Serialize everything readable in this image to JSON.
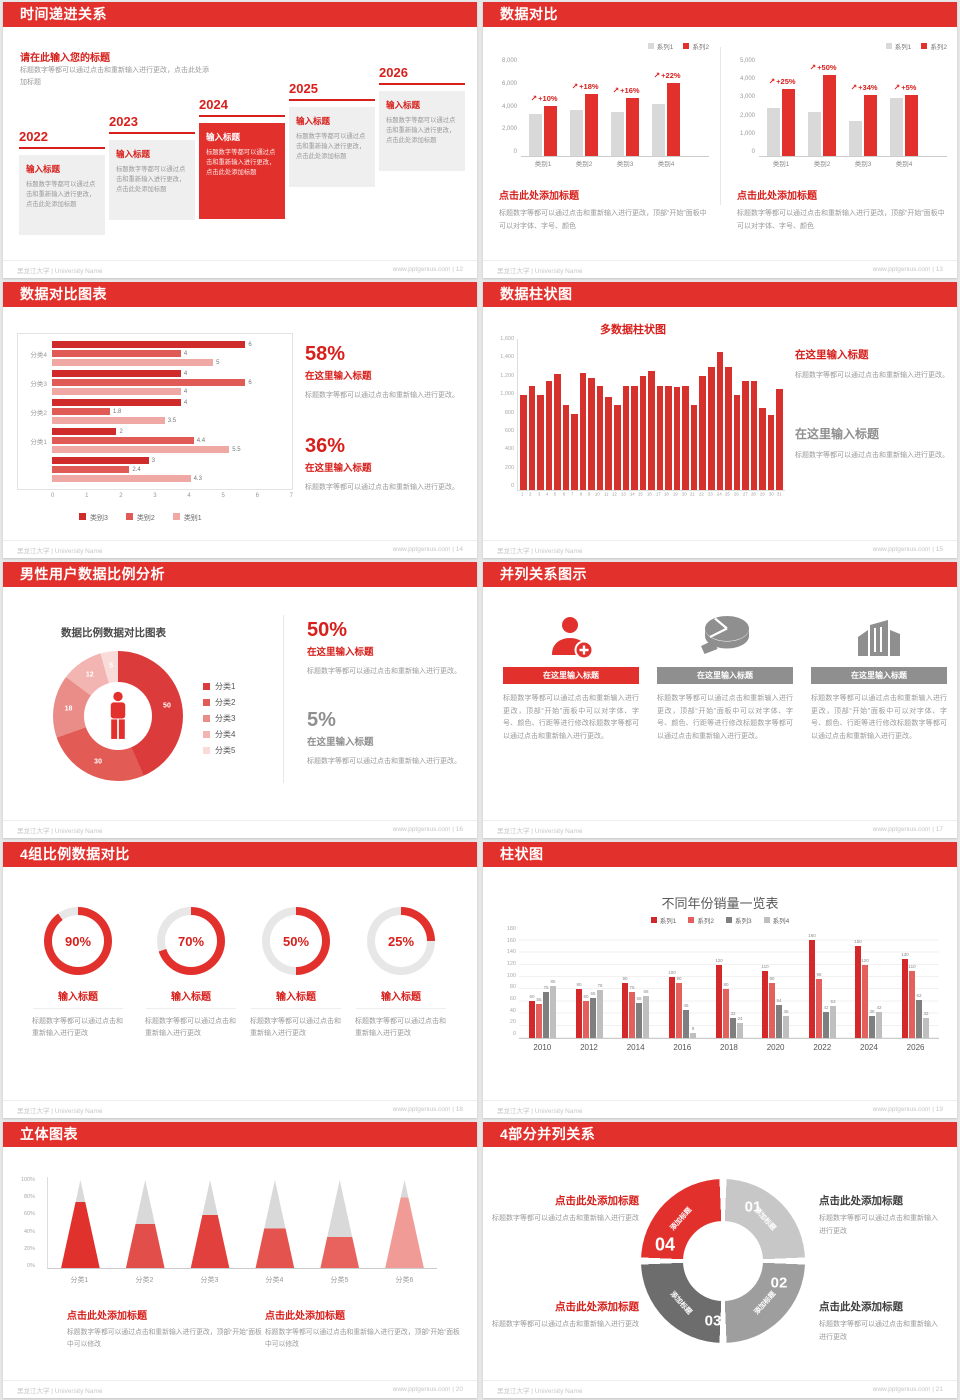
{
  "page": {
    "background": "#e7e7e7",
    "accent": "#e2312d",
    "footer_left": "黑龙江大学 | University Name",
    "footer_site": "www.pptgenius.com"
  },
  "slides": {
    "s1": {
      "title": "时间递进关系",
      "page_no": "12",
      "heading": "请在此输入您的标题",
      "intro": "标题数字等都可以通过点击和重新输入进行更改，点击此处添加标题",
      "item_title": "输入标题",
      "item_body": "标题数字等都可以通过点击和重新输入进行更改，点击此处添加标题",
      "years": [
        "2022",
        "2023",
        "2024",
        "2025",
        "2026"
      ]
    },
    "s2": {
      "title": "数据对比",
      "page_no": "13",
      "heading": "点击此处添加标题",
      "body": "标题数字等都可以通过点击和重新输入进行更改，顶部“开始”面板中可以对字体、字号、颜色"
    },
    "s3": {
      "title": "数据对比图表",
      "page_no": "14",
      "stats": [
        {
          "value": "58%",
          "heading": "在这里输入标题",
          "body": "标题数字等都可以通过点击和重新输入进行更改。"
        },
        {
          "value": "36%",
          "heading": "在这里输入标题",
          "body": "标题数字等都可以通过点击和重新输入进行更改。"
        }
      ]
    },
    "s4": {
      "title": "数据柱状图",
      "page_no": "15",
      "stats": [
        {
          "heading": "在这里输入标题",
          "body": "标题数字等都可以通过点击和重新输入进行更改。"
        },
        {
          "heading": "在这里输入标题",
          "body": "标题数字等都可以通过点击和重新输入进行更改。"
        }
      ]
    },
    "s5": {
      "title": "男性用户数据比例分析",
      "page_no": "16",
      "chart_title": "数据比例数据对比图表",
      "stats": [
        {
          "value": "50%",
          "heading": "在这里输入标题",
          "body": "标题数字等都可以通过点击和重新输入进行更改。"
        },
        {
          "value": "5%",
          "heading": "在这里输入标题",
          "body": "标题数字等都可以通过点击和重新输入进行更改。"
        }
      ]
    },
    "s6": {
      "title": "并列关系图示",
      "page_no": "17",
      "columns": [
        {
          "icon": "nurse-plus-icon",
          "banner": "在这里输入标题",
          "accent": "#e2312d",
          "body": "标题数字等都可以通过点击和重新输入进行更改，顶部“开始”面板中可以对字体、字号、颜色、行距等进行修改标题数字等都可以通过点击和重新输入进行更改。"
        },
        {
          "icon": "pie-3d-icon",
          "banner": "在这里输入标题",
          "accent": "#8f8f8f",
          "body": "标题数字等都可以通过点击和重新输入进行更改，顶部“开始”面板中可以对字体、字号、颜色、行距等进行修改标题数字等都可以通过点击和重新输入进行更改。"
        },
        {
          "icon": "building-icon",
          "banner": "在这里输入标题",
          "accent": "#8f8f8f",
          "body": "标题数字等都可以通过点击和重新输入进行更改，顶部“开始”面板中可以对字体、字号、颜色、行距等进行修改标题数字等都可以通过点击和重新输入进行更改。"
        }
      ]
    },
    "s7": {
      "title": "4组比例数据对比",
      "page_no": "18",
      "items": [
        {
          "percent": 90,
          "label": "90%",
          "heading": "输入标题",
          "body": "标题数字等都可以通过点击和重新输入进行更改"
        },
        {
          "percent": 70,
          "label": "70%",
          "heading": "输入标题",
          "body": "标题数字等都可以通过点击和重新输入进行更改"
        },
        {
          "percent": 50,
          "label": "50%",
          "heading": "输入标题",
          "body": "标题数字等都可以通过点击和重新输入进行更改"
        },
        {
          "percent": 25,
          "label": "25%",
          "heading": "输入标题",
          "body": "标题数字等都可以通过点击和重新输入进行更改"
        }
      ]
    },
    "s8": {
      "title": "柱状图",
      "page_no": "19"
    },
    "s9": {
      "title": "立体图表",
      "page_no": "20",
      "blocks": [
        {
          "heading": "点击此处添加标题",
          "body": "标题数字等都可以通过点击和重新输入进行更改，顶部“开始”面板中可以修改"
        },
        {
          "heading": "点击此处添加标题",
          "body": "标题数字等都可以通过点击和重新输入进行更改，顶部“开始”面板中可以修改"
        }
      ]
    },
    "s10": {
      "title": "4部分并列关系",
      "page_no": "21",
      "segments": [
        {
          "num": "01",
          "label": "添加标题",
          "color": "#c7c7c7"
        },
        {
          "num": "02",
          "label": "添加标题",
          "color": "#9e9e9e"
        },
        {
          "num": "03",
          "label": "添加标题",
          "color": "#6d6d6d"
        },
        {
          "num": "04",
          "label": "添加标题",
          "color": "#e2312d"
        }
      ],
      "blocks": [
        {
          "heading": "点击此处添加标题",
          "body": "标题数字等都可以通过点击和重新输入进行更改"
        },
        {
          "heading": "点击此处添加标题",
          "body": "标题数字等都可以通过点击和重新输入进行更改"
        },
        {
          "heading": "点击此处添加标题",
          "body": "标题数字等都可以通过点击和重新输入进行更改"
        },
        {
          "heading": "点击此处添加标题",
          "body": "标题数字等都可以通过点击和重新输入进行更改"
        }
      ]
    }
  },
  "chart_data": [
    {
      "id": "compare-left",
      "type": "bar",
      "categories": [
        "类别1",
        "类别2",
        "类别3",
        "类别4"
      ],
      "series": [
        {
          "name": "系列1",
          "color": "#d9d9d9",
          "values": [
            3500,
            3800,
            3700,
            4300
          ]
        },
        {
          "name": "系列2",
          "color": "#e2312d",
          "values": [
            4200,
            5200,
            4800,
            6100
          ]
        }
      ],
      "growth_labels": [
        "+10%",
        "+18%",
        "+16%",
        "+22%"
      ],
      "ylim": [
        0,
        8000
      ],
      "yticks": [
        "8,000",
        "6,000",
        "4,000",
        "2,000",
        "0"
      ]
    },
    {
      "id": "compare-right",
      "type": "bar",
      "categories": [
        "类别1",
        "类别2",
        "类别3",
        "类别4"
      ],
      "series": [
        {
          "name": "系列1",
          "color": "#d9d9d9",
          "values": [
            2500,
            2300,
            1800,
            3000
          ]
        },
        {
          "name": "系列2",
          "color": "#e2312d",
          "values": [
            3500,
            4200,
            3200,
            3200
          ]
        }
      ],
      "growth_labels": [
        "+25%",
        "+50%",
        "+34%",
        "+5%"
      ],
      "ylim": [
        0,
        5000
      ],
      "yticks": [
        "5,000",
        "4,000",
        "3,000",
        "2,000",
        "1,000",
        "0"
      ]
    },
    {
      "id": "horizontal-compare",
      "type": "bar",
      "orientation": "horizontal",
      "legend": [
        "类别3",
        "类别2",
        "类别1"
      ],
      "colors": [
        "#cf2b2b",
        "#e05a56",
        "#f0a8a5"
      ],
      "groups": [
        {
          "label": "分类4",
          "values": [
            6,
            4,
            5
          ]
        },
        {
          "label": "分类3",
          "values": [
            4,
            6,
            4
          ]
        },
        {
          "label": "分类2",
          "values": [
            4,
            1.8,
            3.5
          ]
        },
        {
          "label": "分类1",
          "values": [
            2,
            4.4,
            5.5
          ]
        },
        {
          "label": "",
          "values": [
            3,
            2.4,
            4.3
          ]
        }
      ],
      "xlim": [
        0,
        7
      ],
      "xticks": [
        "0",
        "1",
        "2",
        "3",
        "4",
        "5",
        "6",
        "7"
      ]
    },
    {
      "id": "multi-column",
      "type": "bar",
      "title": "多数据柱状图",
      "color": "#d7312e",
      "x": [
        1,
        2,
        3,
        4,
        5,
        6,
        7,
        8,
        9,
        10,
        11,
        12,
        13,
        14,
        15,
        16,
        17,
        18,
        19,
        20,
        21,
        22,
        23,
        24,
        25,
        26,
        27,
        28,
        29,
        30,
        31
      ],
      "values": [
        1000,
        1100,
        1000,
        1150,
        1220,
        900,
        800,
        1230,
        1180,
        1100,
        980,
        900,
        1090,
        1090,
        1200,
        1250,
        1100,
        1090,
        1080,
        1100,
        900,
        1200,
        1300,
        1450,
        1300,
        1000,
        1150,
        1150,
        860,
        790,
        1060
      ],
      "ylim": [
        0,
        1600
      ],
      "yticks": [
        "1,600",
        "1,400",
        "1,200",
        "1,000",
        "800",
        "600",
        "400",
        "200",
        "0"
      ]
    },
    {
      "id": "gender-donut",
      "type": "pie",
      "title": "数据比例数据对比图表",
      "labels": [
        "分类1",
        "分类2",
        "分类3",
        "分类4",
        "分类5"
      ],
      "values": [
        50,
        30,
        18,
        12,
        5
      ],
      "colors": [
        "#db3b3b",
        "#e25b55",
        "#ea8c88",
        "#f3b5b2",
        "#f9dcda"
      ]
    },
    {
      "id": "progress-rings",
      "type": "pie",
      "values": [
        90,
        70,
        50,
        25
      ],
      "color": "#e2312d",
      "track": "#e7e7e7"
    },
    {
      "id": "yearly-sales",
      "type": "bar",
      "title": "不同年份销量一览表",
      "categories": [
        "2010",
        "2012",
        "2014",
        "2016",
        "2018",
        "2020",
        "2022",
        "2024",
        "2026"
      ],
      "series": [
        {
          "name": "系列1",
          "color": "#d4292b",
          "values": [
            60,
            80,
            90,
            100,
            120,
            110,
            160,
            150,
            130
          ]
        },
        {
          "name": "系列2",
          "color": "#e4605c",
          "values": [
            55,
            60,
            75,
            90,
            80,
            90,
            96,
            120,
            110
          ]
        },
        {
          "name": "系列3",
          "color": "#7f7f7f",
          "values": [
            75,
            65,
            58,
            46,
            32,
            54,
            42,
            36,
            62
          ]
        },
        {
          "name": "系列4",
          "color": "#bfbfbf",
          "values": [
            85,
            78,
            68,
            8,
            24,
            36,
            53,
            42,
            32
          ]
        }
      ],
      "ylim": [
        0,
        180
      ],
      "ytick_step": 20,
      "grid": true,
      "legend_position": "top"
    },
    {
      "id": "cone-chart",
      "type": "bar",
      "categories": [
        "分类1",
        "分类2",
        "分类3",
        "分类4",
        "分类5",
        "分类6"
      ],
      "values_percent": [
        75,
        50,
        60,
        45,
        35,
        80
      ],
      "colors": [
        "#e0312d",
        "#e24e49",
        "#e2403c",
        "#e4534e",
        "#e8625e",
        "#f19b97"
      ],
      "top_color": "#d9d9d9",
      "yticks": [
        "100%",
        "80%",
        "60%",
        "40%",
        "20%",
        "0%"
      ]
    }
  ]
}
